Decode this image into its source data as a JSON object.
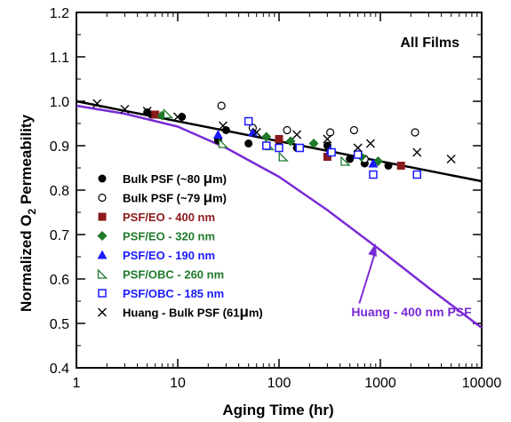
{
  "chart_data": {
    "type": "scatter",
    "panel_label": "All Films",
    "xlabel": "Aging Time (hr)",
    "ylabel": {
      "main": "Normalized O",
      "sub": "2",
      "rest": " Permeability"
    },
    "xscale": "log",
    "xlim": [
      1,
      10000
    ],
    "ylim": [
      0.4,
      1.2
    ],
    "grid": false,
    "legend_position": "lower-left",
    "x_ticks": [
      {
        "value": 1,
        "label": "1"
      },
      {
        "value": 10,
        "label": "10"
      },
      {
        "value": 100,
        "label": "100"
      },
      {
        "value": 1000,
        "label": "1000"
      },
      {
        "value": 10000,
        "label": "10000"
      }
    ],
    "y_ticks": [
      {
        "value": 0.4,
        "label": "0.4"
      },
      {
        "value": 0.5,
        "label": "0.5"
      },
      {
        "value": 0.6,
        "label": "0.6"
      },
      {
        "value": 0.7,
        "label": "0.7"
      },
      {
        "value": 0.8,
        "label": "0.8"
      },
      {
        "value": 0.9,
        "label": "0.9"
      },
      {
        "value": 1.0,
        "label": "1.0"
      },
      {
        "value": 1.1,
        "label": "1.1"
      },
      {
        "value": 1.2,
        "label": "1.2"
      }
    ],
    "series": [
      {
        "name": "Bulk PSF (~80 μm)",
        "legend": {
          "pre": "Bulk PSF (~80 ",
          "greek": "μ",
          "post": "m)"
        },
        "marker": "circle-filled",
        "color": "#000000",
        "points": [
          [
            5,
            0.975
          ],
          [
            5.5,
            0.97
          ],
          [
            11,
            0.965
          ],
          [
            25,
            0.912
          ],
          [
            30,
            0.935
          ],
          [
            50,
            0.905
          ],
          [
            100,
            0.91
          ],
          [
            150,
            0.895
          ],
          [
            300,
            0.9
          ],
          [
            500,
            0.87
          ],
          [
            700,
            0.86
          ],
          [
            1200,
            0.855
          ]
        ]
      },
      {
        "name": "Bulk PSF (~79 μm)",
        "legend": {
          "pre": "Bulk PSF (~79 ",
          "greek": "μ",
          "post": "m)"
        },
        "marker": "circle-open",
        "color": "#000000",
        "points": [
          [
            27,
            0.99
          ],
          [
            55,
            0.94
          ],
          [
            120,
            0.935
          ],
          [
            320,
            0.93
          ],
          [
            550,
            0.935
          ],
          [
            700,
            0.87
          ],
          [
            2200,
            0.93
          ]
        ]
      },
      {
        "name": "PSF/EO - 400 nm",
        "legend": {
          "pre": "PSF/EO - 400 nm",
          "greek": "",
          "post": ""
        },
        "marker": "square-filled",
        "color": "#8b1a1a",
        "points": [
          [
            6,
            0.97
          ],
          [
            100,
            0.915
          ],
          [
            300,
            0.875
          ],
          [
            1600,
            0.855
          ]
        ]
      },
      {
        "name": "PSF/EO - 320 nm",
        "legend": {
          "pre": "PSF/EO - 320 nm",
          "greek": "",
          "post": ""
        },
        "marker": "diamond-filled",
        "color": "#1f7a2a",
        "points": [
          [
            7,
            0.968
          ],
          [
            75,
            0.92
          ],
          [
            130,
            0.91
          ],
          [
            220,
            0.905
          ],
          [
            650,
            0.875
          ],
          [
            950,
            0.865
          ]
        ]
      },
      {
        "name": "PSF/EO - 190 nm",
        "legend": {
          "pre": "PSF/EO - 190 nm",
          "greek": "",
          "post": ""
        },
        "marker": "triangle-filled",
        "color": "#1a1aff",
        "points": [
          [
            25,
            0.925
          ],
          [
            55,
            0.93
          ],
          [
            320,
            0.89
          ],
          [
            850,
            0.86
          ]
        ]
      },
      {
        "name": "PSF/OBC - 260 nm",
        "legend": {
          "pre": "PSF/OBC - 260 nm",
          "greek": "",
          "post": ""
        },
        "marker": "righttriangle-open",
        "color": "#1f7a2a",
        "points": [
          [
            8,
            0.972
          ],
          [
            28,
            0.905
          ],
          [
            80,
            0.9
          ],
          [
            110,
            0.875
          ],
          [
            450,
            0.865
          ]
        ]
      },
      {
        "name": "PSF/OBC - 185 nm",
        "legend": {
          "pre": "PSF/OBC - 185 nm",
          "greek": "",
          "post": ""
        },
        "marker": "square-open",
        "color": "#1a1aff",
        "points": [
          [
            50,
            0.955
          ],
          [
            75,
            0.9
          ],
          [
            100,
            0.895
          ],
          [
            160,
            0.895
          ],
          [
            330,
            0.885
          ],
          [
            600,
            0.88
          ],
          [
            850,
            0.835
          ],
          [
            2300,
            0.835
          ]
        ]
      },
      {
        "name": "Huang - Bulk PSF (61 μm)",
        "legend": {
          "pre": "Huang - Bulk PSF (61",
          "greek": "μ",
          "post": "m)"
        },
        "marker": "x",
        "color": "#000000",
        "points": [
          [
            1.6,
            0.995
          ],
          [
            3,
            0.982
          ],
          [
            5,
            0.978
          ],
          [
            10,
            0.965
          ],
          [
            28,
            0.945
          ],
          [
            60,
            0.93
          ],
          [
            150,
            0.925
          ],
          [
            300,
            0.915
          ],
          [
            600,
            0.895
          ],
          [
            800,
            0.905
          ],
          [
            2300,
            0.885
          ],
          [
            5000,
            0.87
          ]
        ]
      }
    ],
    "lines": [
      {
        "label": "linear fit (no legend label)",
        "color": "#000000",
        "points": [
          [
            1,
            1.0
          ],
          [
            10000,
            0.82
          ]
        ]
      },
      {
        "label": "Huang - 400 nm PSF",
        "color": "#7a2ad6",
        "points": [
          [
            1,
            0.99
          ],
          [
            3,
            0.972
          ],
          [
            10,
            0.943
          ],
          [
            30,
            0.895
          ],
          [
            100,
            0.83
          ],
          [
            300,
            0.755
          ],
          [
            1000,
            0.665
          ],
          [
            3000,
            0.58
          ],
          [
            10000,
            0.49
          ]
        ]
      }
    ],
    "annotation": {
      "text": "Huang - 400 nm PSF",
      "color": "#7a2ad6",
      "arrow_to": [
        900,
        0.68
      ],
      "arrow_from": [
        620,
        0.545
      ]
    }
  }
}
